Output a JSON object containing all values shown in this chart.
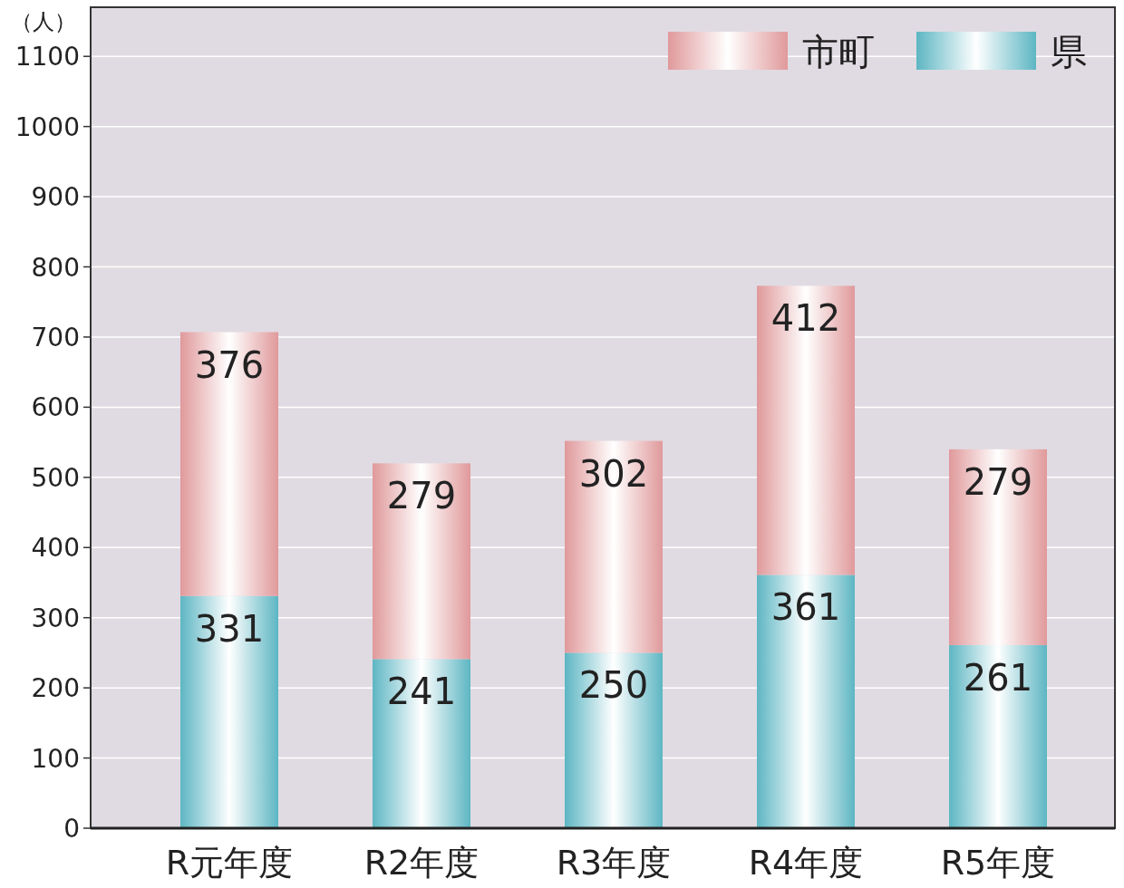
{
  "chart_data": {
    "type": "bar",
    "stacked": true,
    "ylabel": "（人）",
    "categories": [
      "R元年度",
      "R2年度",
      "R3年度",
      "R4年度",
      "R5年度"
    ],
    "series": [
      {
        "name": "県",
        "color": "#5db6c3",
        "values": [
          331,
          241,
          250,
          361,
          261
        ]
      },
      {
        "name": "市町",
        "color": "#e0999b",
        "values": [
          376,
          279,
          302,
          412,
          279
        ]
      }
    ],
    "ylim": [
      0,
      1170
    ],
    "yticks": [
      0,
      100,
      200,
      300,
      400,
      500,
      600,
      700,
      800,
      900,
      1000,
      1100
    ],
    "grid": "y",
    "legend": "top right",
    "data_labels": true
  }
}
